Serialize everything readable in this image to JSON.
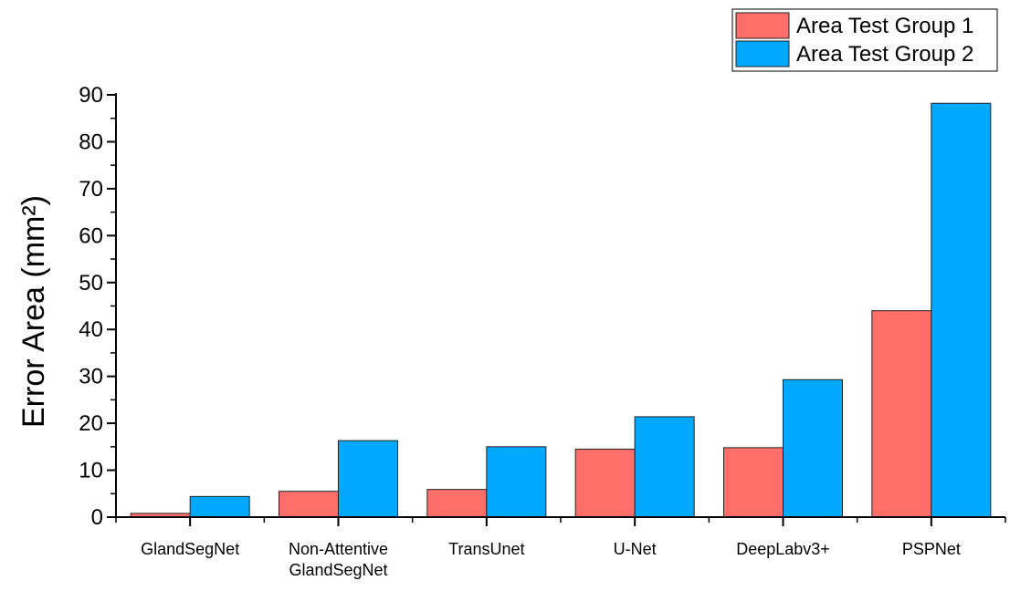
{
  "chart_data": {
    "type": "bar",
    "title": "",
    "xlabel": "",
    "ylabel": "Error Area (mm²)",
    "ylim": [
      0,
      90
    ],
    "yticks": [
      0,
      10,
      20,
      30,
      40,
      50,
      60,
      70,
      80,
      90
    ],
    "grid": false,
    "legend_position": "top-right",
    "categories": [
      [
        "GlandSegNet"
      ],
      [
        "Non-Attentive",
        "GlandSegNet"
      ],
      [
        "TransUnet"
      ],
      [
        "U-Net"
      ],
      [
        "DeepLabv3+"
      ],
      [
        "PSPNet"
      ]
    ],
    "series": [
      {
        "name": "Area Test Group 1",
        "color": "#ff6f6a",
        "values": [
          0.8,
          5.5,
          5.9,
          14.5,
          14.8,
          44.0
        ]
      },
      {
        "name": "Area Test Group 2",
        "color": "#00a8ff",
        "values": [
          4.4,
          16.3,
          15.0,
          21.4,
          29.3,
          88.2
        ]
      }
    ]
  }
}
